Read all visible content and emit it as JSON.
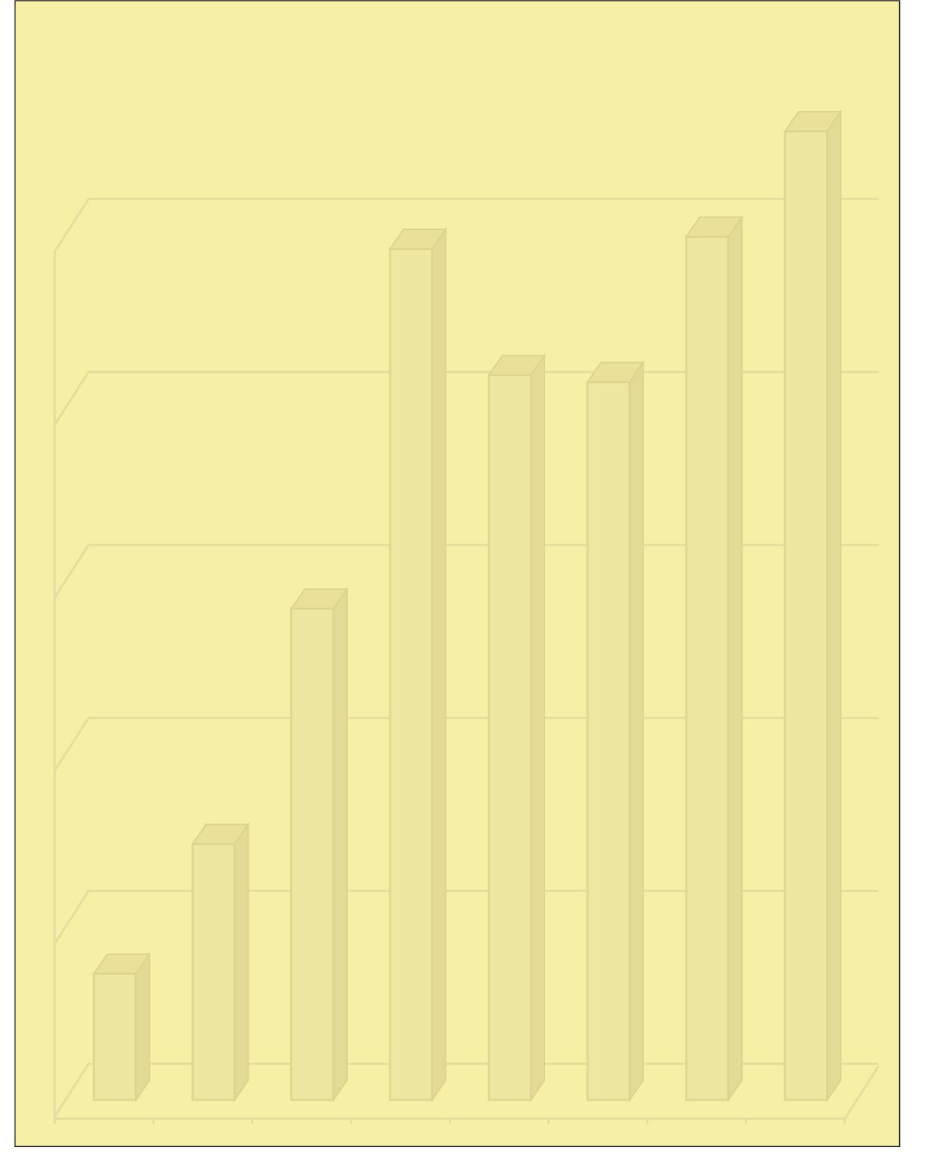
{
  "chart_data": {
    "type": "bar3d",
    "values": [
      0.73,
      1.48,
      2.84,
      4.92,
      4.19,
      4.15,
      4.99,
      5.6
    ],
    "color": "#ede7a2",
    "ylim": [
      0,
      5
    ],
    "yticks": [
      0,
      1,
      2,
      3,
      4,
      5
    ],
    "grid": true
  }
}
